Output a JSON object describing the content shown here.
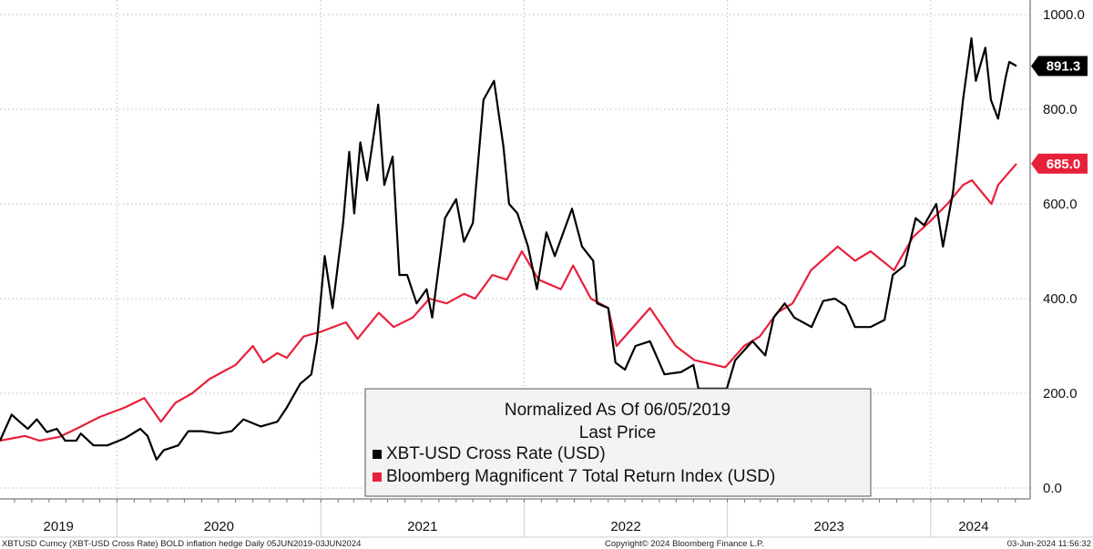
{
  "chart_data": {
    "type": "line",
    "x_type": "date",
    "ylim": [
      0,
      1000
    ],
    "y_ticks": [
      0,
      200,
      400,
      600,
      800,
      1000
    ],
    "y_tick_labels": [
      "0.0",
      "200.0",
      "400.0",
      "600.0",
      "800.0",
      "1000.0"
    ],
    "x_year_labels": [
      "2019",
      "2020",
      "2021",
      "2022",
      "2023",
      "2024"
    ],
    "grid": true,
    "legend_position": "bottom-center",
    "legend_title_line1": "Normalized As Of 06/05/2019",
    "legend_title_line2": "Last Price",
    "series": [
      {
        "name": "XBT-USD Cross Rate (USD)",
        "color": "#000000",
        "last_value_label": "891.3",
        "last_value": 891.3,
        "points": [
          [
            "2019-06-05",
            100
          ],
          [
            "2019-06-26",
            155
          ],
          [
            "2019-07-10",
            140
          ],
          [
            "2019-07-25",
            125
          ],
          [
            "2019-08-10",
            145
          ],
          [
            "2019-08-28",
            118
          ],
          [
            "2019-09-15",
            125
          ],
          [
            "2019-09-30",
            100
          ],
          [
            "2019-10-20",
            100
          ],
          [
            "2019-10-28",
            115
          ],
          [
            "2019-11-20",
            90
          ],
          [
            "2019-12-15",
            90
          ],
          [
            "2020-01-15",
            105
          ],
          [
            "2020-02-12",
            125
          ],
          [
            "2020-02-25",
            110
          ],
          [
            "2020-03-12",
            60
          ],
          [
            "2020-03-25",
            80
          ],
          [
            "2020-04-20",
            90
          ],
          [
            "2020-05-08",
            120
          ],
          [
            "2020-06-01",
            120
          ],
          [
            "2020-07-01",
            115
          ],
          [
            "2020-07-25",
            120
          ],
          [
            "2020-08-15",
            145
          ],
          [
            "2020-09-15",
            130
          ],
          [
            "2020-10-15",
            140
          ],
          [
            "2020-11-01",
            170
          ],
          [
            "2020-11-25",
            220
          ],
          [
            "2020-12-15",
            240
          ],
          [
            "2020-12-25",
            310
          ],
          [
            "2021-01-08",
            490
          ],
          [
            "2021-01-22",
            380
          ],
          [
            "2021-02-10",
            560
          ],
          [
            "2021-02-21",
            710
          ],
          [
            "2021-03-02",
            580
          ],
          [
            "2021-03-13",
            730
          ],
          [
            "2021-03-25",
            650
          ],
          [
            "2021-04-14",
            810
          ],
          [
            "2021-04-25",
            640
          ],
          [
            "2021-05-10",
            700
          ],
          [
            "2021-05-22",
            450
          ],
          [
            "2021-06-05",
            450
          ],
          [
            "2021-06-22",
            390
          ],
          [
            "2021-07-10",
            420
          ],
          [
            "2021-07-20",
            360
          ],
          [
            "2021-08-12",
            570
          ],
          [
            "2021-09-01",
            610
          ],
          [
            "2021-09-15",
            520
          ],
          [
            "2021-10-01",
            560
          ],
          [
            "2021-10-20",
            820
          ],
          [
            "2021-11-08",
            860
          ],
          [
            "2021-11-25",
            720
          ],
          [
            "2021-12-05",
            600
          ],
          [
            "2021-12-20",
            580
          ],
          [
            "2022-01-08",
            510
          ],
          [
            "2022-01-24",
            420
          ],
          [
            "2022-02-10",
            540
          ],
          [
            "2022-02-25",
            490
          ],
          [
            "2022-03-28",
            590
          ],
          [
            "2022-04-15",
            510
          ],
          [
            "2022-05-05",
            480
          ],
          [
            "2022-05-12",
            390
          ],
          [
            "2022-06-01",
            380
          ],
          [
            "2022-06-14",
            265
          ],
          [
            "2022-07-01",
            250
          ],
          [
            "2022-07-20",
            300
          ],
          [
            "2022-08-15",
            310
          ],
          [
            "2022-09-10",
            240
          ],
          [
            "2022-10-10",
            245
          ],
          [
            "2022-11-01",
            260
          ],
          [
            "2022-11-10",
            210
          ],
          [
            "2022-12-01",
            210
          ],
          [
            "2022-12-31",
            210
          ],
          [
            "2023-01-15",
            270
          ],
          [
            "2023-02-15",
            310
          ],
          [
            "2023-03-10",
            280
          ],
          [
            "2023-03-25",
            360
          ],
          [
            "2023-04-14",
            390
          ],
          [
            "2023-05-01",
            360
          ],
          [
            "2023-06-01",
            340
          ],
          [
            "2023-06-22",
            395
          ],
          [
            "2023-07-13",
            400
          ],
          [
            "2023-08-01",
            385
          ],
          [
            "2023-08-18",
            340
          ],
          [
            "2023-09-15",
            340
          ],
          [
            "2023-10-10",
            355
          ],
          [
            "2023-10-25",
            450
          ],
          [
            "2023-11-15",
            470
          ],
          [
            "2023-12-05",
            570
          ],
          [
            "2023-12-20",
            555
          ],
          [
            "2024-01-11",
            600
          ],
          [
            "2024-01-23",
            510
          ],
          [
            "2024-02-10",
            625
          ],
          [
            "2024-02-28",
            820
          ],
          [
            "2024-03-14",
            950
          ],
          [
            "2024-03-22",
            860
          ],
          [
            "2024-04-08",
            930
          ],
          [
            "2024-04-18",
            820
          ],
          [
            "2024-05-01",
            780
          ],
          [
            "2024-05-15",
            870
          ],
          [
            "2024-05-21",
            900
          ],
          [
            "2024-06-03",
            891.3
          ]
        ]
      },
      {
        "name": "Bloomberg Magnificent 7 Total Return Index (USD)",
        "color": "#e8203a",
        "last_value_label": "685.0",
        "last_value": 685.0,
        "points": [
          [
            "2019-06-05",
            100
          ],
          [
            "2019-07-20",
            110
          ],
          [
            "2019-08-15",
            100
          ],
          [
            "2019-09-20",
            108
          ],
          [
            "2019-10-20",
            125
          ],
          [
            "2019-12-01",
            150
          ],
          [
            "2020-01-15",
            170
          ],
          [
            "2020-02-19",
            190
          ],
          [
            "2020-03-20",
            140
          ],
          [
            "2020-04-15",
            180
          ],
          [
            "2020-05-15",
            200
          ],
          [
            "2020-06-15",
            230
          ],
          [
            "2020-08-01",
            260
          ],
          [
            "2020-09-01",
            300
          ],
          [
            "2020-09-20",
            265
          ],
          [
            "2020-10-15",
            285
          ],
          [
            "2020-11-01",
            275
          ],
          [
            "2020-12-01",
            320
          ],
          [
            "2021-01-01",
            330
          ],
          [
            "2021-02-15",
            350
          ],
          [
            "2021-03-08",
            315
          ],
          [
            "2021-04-15",
            370
          ],
          [
            "2021-05-12",
            340
          ],
          [
            "2021-06-15",
            360
          ],
          [
            "2021-07-15",
            400
          ],
          [
            "2021-08-15",
            390
          ],
          [
            "2021-09-15",
            410
          ],
          [
            "2021-10-05",
            400
          ],
          [
            "2021-11-05",
            450
          ],
          [
            "2021-12-01",
            440
          ],
          [
            "2021-12-28",
            500
          ],
          [
            "2022-01-27",
            440
          ],
          [
            "2022-03-08",
            420
          ],
          [
            "2022-03-30",
            470
          ],
          [
            "2022-05-01",
            400
          ],
          [
            "2022-06-01",
            380
          ],
          [
            "2022-06-16",
            300
          ],
          [
            "2022-08-15",
            380
          ],
          [
            "2022-09-30",
            300
          ],
          [
            "2022-11-03",
            270
          ],
          [
            "2022-12-28",
            255
          ],
          [
            "2023-01-31",
            300
          ],
          [
            "2023-02-28",
            320
          ],
          [
            "2023-03-31",
            370
          ],
          [
            "2023-04-28",
            390
          ],
          [
            "2023-05-31",
            460
          ],
          [
            "2023-07-18",
            510
          ],
          [
            "2023-08-18",
            480
          ],
          [
            "2023-09-15",
            500
          ],
          [
            "2023-10-27",
            460
          ],
          [
            "2023-11-30",
            530
          ],
          [
            "2023-12-28",
            560
          ],
          [
            "2024-01-31",
            600
          ],
          [
            "2024-02-28",
            640
          ],
          [
            "2024-03-15",
            650
          ],
          [
            "2024-04-19",
            600
          ],
          [
            "2024-05-01",
            640
          ],
          [
            "2024-06-03",
            685
          ]
        ]
      }
    ]
  },
  "footer": {
    "left": "XBTUSD Curncy (XBT-USD Cross Rate) BOLD inflation hedge  Daily 05JUN2019-03JUN2024",
    "center": "Copyright© 2024 Bloomberg Finance L.P.",
    "right": "03-Jun-2024 11:56:32"
  }
}
